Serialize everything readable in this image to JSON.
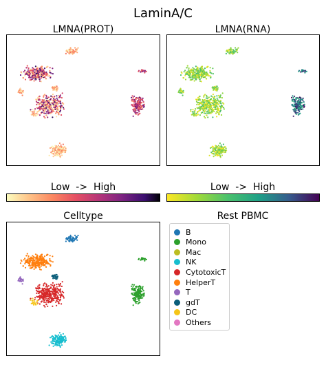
{
  "chart_data": {
    "type": "scatter",
    "title": "LaminA/C",
    "panels": [
      {
        "title": "LMNA(PROT)",
        "colormap": "magma"
      },
      {
        "title": "LMNA(RNA)",
        "colormap": "viridis"
      },
      {
        "title": "Celltype",
        "legend_title": "Rest PBMC"
      }
    ],
    "colorbars": [
      {
        "label": "Low  ->  High",
        "colormap": "magma"
      },
      {
        "label": "Low  ->  High",
        "colormap": "viridis"
      }
    ],
    "celltypes": [
      {
        "name": "B",
        "color": "#1f77b4"
      },
      {
        "name": "Mono",
        "color": "#2ca02c"
      },
      {
        "name": "Mac",
        "color": "#bcbd22"
      },
      {
        "name": "NK",
        "color": "#17becf"
      },
      {
        "name": "CytotoxicT",
        "color": "#d62728"
      },
      {
        "name": "HelperT",
        "color": "#ff7f0e"
      },
      {
        "name": "T",
        "color": "#9467bd"
      },
      {
        "name": "gdT",
        "color": "#0b5e7a"
      },
      {
        "name": "DC",
        "color": "#f5c518"
      },
      {
        "name": "Others",
        "color": "#e377c2"
      }
    ]
  }
}
